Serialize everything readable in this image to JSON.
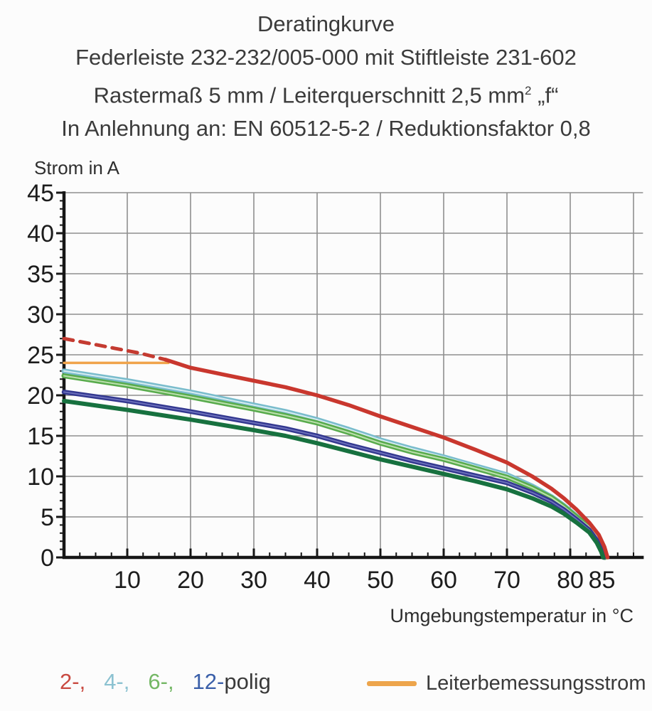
{
  "title": {
    "line1": "Deratingkurve",
    "line2": "Federleiste 232-232/005-000 mit Stiftleiste 231-602",
    "line3_pre": "Rastermaß 5 mm / Leiterquerschnitt 2,5 mm",
    "line3_sup": "2",
    "line3_post": " „f“",
    "line4": "In Anlehnung an: EN 60512-5-2 / Reduktionsfaktor 0,8"
  },
  "legend": {
    "pole_items": [
      {
        "label": "2-,",
        "color": "#c94a41"
      },
      {
        "label": "4-,",
        "color": "#8cc2d1"
      },
      {
        "label": "6-,",
        "color": "#74b765"
      },
      {
        "label": "12-",
        "color": "#3a5fa9"
      },
      {
        "label": "polig",
        "color": "#3a3a3a"
      }
    ],
    "rated_current_label": "Leiterbemessungsstrom",
    "rated_current_color": "#eda54c"
  },
  "chart_data": {
    "type": "line",
    "title": "Deratingkurve",
    "xlabel": "Umgebungstemperatur in °C",
    "ylabel": "Strom in A",
    "xlim": [
      0,
      91.5
    ],
    "ylim": [
      0,
      45
    ],
    "grid": true,
    "x_ticks": [
      10,
      20,
      30,
      40,
      50,
      60,
      70,
      80,
      85
    ],
    "x_gridlines": [
      10,
      20,
      30,
      40,
      50,
      60,
      70,
      80,
      90
    ],
    "x_minor_tick_step": 2.5,
    "x_minor_tick_max": 90,
    "y_ticks": [
      0,
      5,
      10,
      15,
      20,
      25,
      30,
      35,
      40,
      45
    ],
    "y_gridlines": [
      5,
      10,
      15,
      20,
      25,
      30,
      35,
      40,
      45
    ],
    "y_minor_tick_step": 1,
    "grid_color": "#8f8f8f",
    "axis_color": "#161616",
    "series": [
      {
        "id": "leiterbemessungsstrom",
        "name": "Leiterbemessungsstrom",
        "color": "#f0a44b",
        "width": 3.5,
        "points": [
          [
            0,
            24
          ],
          [
            16.5,
            24
          ]
        ]
      },
      {
        "id": "2-polig-dashed",
        "name": "2-polig (gestrichelter Abschnitt)",
        "color": "#c43b31",
        "width": 5,
        "dash": "13 10",
        "points": [
          [
            0,
            27
          ],
          [
            4,
            26.4
          ],
          [
            8,
            25.8
          ],
          [
            12,
            25.2
          ],
          [
            15.8,
            24.45
          ]
        ]
      },
      {
        "id": "4-polig",
        "name": "4-polig",
        "color": "#79bccc",
        "core_color": "#d7ecf2",
        "width": 7,
        "core_width": 2,
        "points": [
          [
            0,
            23.0
          ],
          [
            10,
            21.8
          ],
          [
            20,
            20.4
          ],
          [
            30,
            18.8
          ],
          [
            35,
            18.0
          ],
          [
            40,
            17.0
          ],
          [
            45,
            15.8
          ],
          [
            50,
            14.5
          ],
          [
            55,
            13.4
          ],
          [
            60,
            12.4
          ],
          [
            65,
            11.3
          ],
          [
            70,
            10.2
          ],
          [
            74,
            8.8
          ],
          [
            77,
            7.5
          ],
          [
            79,
            6.4
          ],
          [
            81,
            5.1
          ],
          [
            83,
            3.7
          ],
          [
            84.5,
            2.2
          ],
          [
            85.1,
            1.0
          ],
          [
            85.4,
            0
          ]
        ]
      },
      {
        "id": "6-polig",
        "name": "6-polig",
        "color": "#58ab4c",
        "core_color": "#bce0ae",
        "width": 7,
        "core_width": 2,
        "points": [
          [
            0,
            22.4
          ],
          [
            10,
            21.2
          ],
          [
            20,
            19.8
          ],
          [
            30,
            18.3
          ],
          [
            35,
            17.5
          ],
          [
            40,
            16.6
          ],
          [
            45,
            15.4
          ],
          [
            50,
            14.1
          ],
          [
            55,
            13.0
          ],
          [
            60,
            12.1
          ],
          [
            65,
            11.0
          ],
          [
            70,
            9.9
          ],
          [
            74,
            8.6
          ],
          [
            77,
            7.4
          ],
          [
            79,
            6.3
          ],
          [
            81,
            5.0
          ],
          [
            83,
            3.8
          ],
          [
            84.5,
            2.4
          ],
          [
            85.2,
            1.1
          ],
          [
            85.5,
            0
          ]
        ]
      },
      {
        "id": "12-polig",
        "name": "12-polig",
        "color": "#32378f",
        "core_color": "#6e72bd",
        "width": 6.5,
        "core_width": 1.8,
        "points": [
          [
            0,
            20.4
          ],
          [
            10,
            19.3
          ],
          [
            20,
            18.0
          ],
          [
            30,
            16.6
          ],
          [
            35,
            15.9
          ],
          [
            40,
            15.0
          ],
          [
            45,
            13.9
          ],
          [
            50,
            12.9
          ],
          [
            55,
            11.9
          ],
          [
            60,
            11.0
          ],
          [
            65,
            10.1
          ],
          [
            70,
            9.2
          ],
          [
            74,
            8.0
          ],
          [
            77,
            6.9
          ],
          [
            79,
            5.9
          ],
          [
            81,
            4.7
          ],
          [
            83,
            3.4
          ],
          [
            84.3,
            2.0
          ],
          [
            85.0,
            0.8
          ],
          [
            85.3,
            0
          ]
        ]
      },
      {
        "id": "dunkelgruene-kurve",
        "name": "dunkelgrüne Kurve (ohne Legendeneintrag)",
        "color": "#17713f",
        "width": 6,
        "points": [
          [
            0,
            19.3
          ],
          [
            10,
            18.2
          ],
          [
            20,
            17.0
          ],
          [
            30,
            15.7
          ],
          [
            35,
            15.0
          ],
          [
            40,
            14.1
          ],
          [
            45,
            13.1
          ],
          [
            50,
            12.1
          ],
          [
            55,
            11.2
          ],
          [
            60,
            10.3
          ],
          [
            65,
            9.4
          ],
          [
            70,
            8.4
          ],
          [
            74,
            7.3
          ],
          [
            77,
            6.3
          ],
          [
            79,
            5.4
          ],
          [
            81,
            4.3
          ],
          [
            83,
            3.1
          ],
          [
            84.2,
            1.8
          ],
          [
            84.9,
            0.7
          ],
          [
            85.2,
            0
          ]
        ]
      },
      {
        "id": "2-polig",
        "name": "2-polig",
        "color": "#c9372e",
        "width": 5.5,
        "points": [
          [
            16,
            24.4
          ],
          [
            20,
            23.4
          ],
          [
            25,
            22.6
          ],
          [
            30,
            21.8
          ],
          [
            35,
            21.0
          ],
          [
            40,
            20.0
          ],
          [
            45,
            18.8
          ],
          [
            50,
            17.4
          ],
          [
            55,
            16.1
          ],
          [
            60,
            14.8
          ],
          [
            65,
            13.3
          ],
          [
            70,
            11.7
          ],
          [
            74,
            10.0
          ],
          [
            77,
            8.5
          ],
          [
            79,
            7.3
          ],
          [
            81,
            5.9
          ],
          [
            83,
            4.3
          ],
          [
            84.5,
            2.8
          ],
          [
            85.4,
            1.3
          ],
          [
            85.9,
            0
          ]
        ]
      }
    ]
  }
}
